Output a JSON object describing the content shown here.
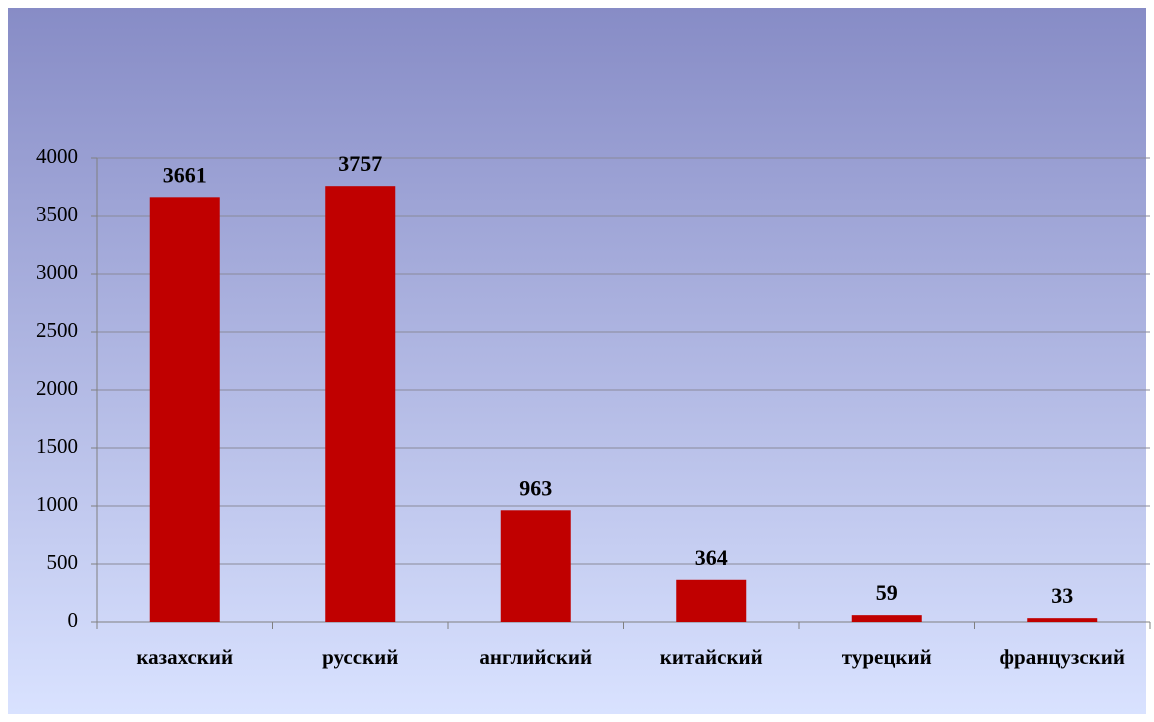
{
  "chart_data": {
    "type": "bar",
    "categories": [
      "казахский",
      "русский",
      "английский",
      "китайский",
      "турецкий",
      "французский"
    ],
    "values": [
      3661,
      3757,
      963,
      364,
      59,
      33
    ],
    "color": "#c00000",
    "ylim": [
      0,
      4000
    ],
    "yticks": [
      0,
      500,
      1000,
      1500,
      2000,
      2500,
      3000,
      3500,
      4000
    ],
    "grid": true,
    "data_labels": true
  }
}
